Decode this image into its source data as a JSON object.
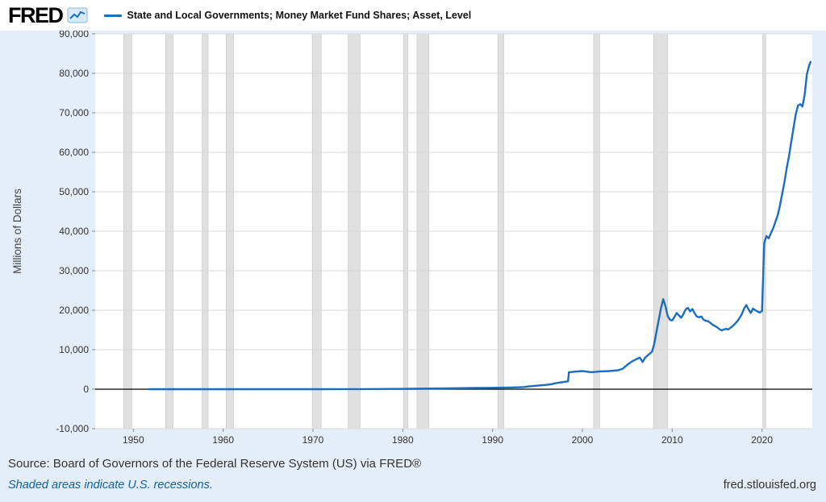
{
  "header": {
    "brand": "FRED",
    "legend": {
      "label": "State and Local Governments; Money Market Fund Shares; Asset, Level"
    }
  },
  "footer": {
    "source": "Source: Board of Governors of the Federal Reserve System (US) via FRED®",
    "recession_note": "Shaded areas indicate U.S. recessions.",
    "site": "fred.stlouisfed.org"
  },
  "chart_data": {
    "type": "line",
    "title": "State and Local Governments; Money Market Fund Shares; Asset, Level",
    "xlabel": "",
    "ylabel": "Millions of Dollars",
    "xlim": [
      1945.75,
      2025.6
    ],
    "ylim": [
      -10000,
      90000
    ],
    "yticks": [
      -10000,
      0,
      10000,
      20000,
      30000,
      40000,
      50000,
      60000,
      70000,
      80000,
      90000
    ],
    "xticks": [
      1950,
      1960,
      1970,
      1980,
      1990,
      2000,
      2010,
      2020
    ],
    "grid": true,
    "legend_position": "top",
    "line_color": "#1b6dc1",
    "recession_color": "#e0e0e0",
    "recessions": [
      [
        1948.92,
        1949.83
      ],
      [
        1953.58,
        1954.42
      ],
      [
        1957.67,
        1958.33
      ],
      [
        1960.33,
        1961.17
      ],
      [
        1969.92,
        1970.92
      ],
      [
        1973.92,
        1975.25
      ],
      [
        1980.08,
        1980.58
      ],
      [
        1981.58,
        1982.92
      ],
      [
        1990.58,
        1991.25
      ],
      [
        2001.25,
        2001.92
      ],
      [
        2007.92,
        2009.5
      ],
      [
        2020.08,
        2020.42
      ]
    ],
    "series": [
      {
        "name": "State and Local Governments; Money Market Fund Shares; Asset, Level",
        "units": "Millions of Dollars",
        "points": [
          [
            1951.75,
            5
          ],
          [
            1955,
            5
          ],
          [
            1960,
            5
          ],
          [
            1965,
            5
          ],
          [
            1970,
            10
          ],
          [
            1974,
            20
          ],
          [
            1975,
            30
          ],
          [
            1980,
            80
          ],
          [
            1985,
            200
          ],
          [
            1988,
            300
          ],
          [
            1990,
            350
          ],
          [
            1991,
            380
          ],
          [
            1992,
            420
          ],
          [
            1993,
            500
          ],
          [
            1993.5,
            550
          ],
          [
            1994,
            700
          ],
          [
            1994.5,
            800
          ],
          [
            1995,
            900
          ],
          [
            1995.5,
            1000
          ],
          [
            1996,
            1100
          ],
          [
            1996.5,
            1250
          ],
          [
            1997,
            1500
          ],
          [
            1997.5,
            1700
          ],
          [
            1998,
            1850
          ],
          [
            1998.4,
            2000
          ],
          [
            1998.5,
            4300
          ],
          [
            1999,
            4400
          ],
          [
            2000,
            4600
          ],
          [
            2001,
            4300
          ],
          [
            2002,
            4500
          ],
          [
            2003,
            4600
          ],
          [
            2004,
            4800
          ],
          [
            2004.5,
            5200
          ],
          [
            2005,
            6200
          ],
          [
            2005.5,
            7000
          ],
          [
            2006,
            7600
          ],
          [
            2006.4,
            8000
          ],
          [
            2006.7,
            6900
          ],
          [
            2007,
            8000
          ],
          [
            2007.5,
            9000
          ],
          [
            2007.75,
            9500
          ],
          [
            2008,
            11500
          ],
          [
            2008.25,
            14500
          ],
          [
            2008.5,
            17500
          ],
          [
            2008.75,
            20500
          ],
          [
            2009,
            22800
          ],
          [
            2009.25,
            21000
          ],
          [
            2009.5,
            18500
          ],
          [
            2009.75,
            17600
          ],
          [
            2010,
            17400
          ],
          [
            2010.25,
            18300
          ],
          [
            2010.5,
            19300
          ],
          [
            2010.75,
            18700
          ],
          [
            2011,
            18100
          ],
          [
            2011.25,
            19000
          ],
          [
            2011.5,
            20200
          ],
          [
            2011.75,
            20600
          ],
          [
            2012,
            19700
          ],
          [
            2012.25,
            20300
          ],
          [
            2012.5,
            19200
          ],
          [
            2012.75,
            18400
          ],
          [
            2013,
            18200
          ],
          [
            2013.25,
            18400
          ],
          [
            2013.5,
            17600
          ],
          [
            2013.75,
            17300
          ],
          [
            2014,
            17200
          ],
          [
            2014.25,
            16800
          ],
          [
            2014.5,
            16300
          ],
          [
            2014.75,
            16000
          ],
          [
            2015,
            15700
          ],
          [
            2015.25,
            15200
          ],
          [
            2015.5,
            14900
          ],
          [
            2015.75,
            15100
          ],
          [
            2016,
            15300
          ],
          [
            2016.25,
            15100
          ],
          [
            2016.5,
            15600
          ],
          [
            2016.75,
            16000
          ],
          [
            2017,
            16600
          ],
          [
            2017.25,
            17200
          ],
          [
            2017.5,
            18000
          ],
          [
            2017.75,
            19000
          ],
          [
            2018,
            20400
          ],
          [
            2018.25,
            21300
          ],
          [
            2018.5,
            20200
          ],
          [
            2018.75,
            19300
          ],
          [
            2019,
            20400
          ],
          [
            2019.25,
            20000
          ],
          [
            2019.5,
            19700
          ],
          [
            2019.75,
            19400
          ],
          [
            2020,
            19800
          ],
          [
            2020.25,
            37000
          ],
          [
            2020.5,
            38800
          ],
          [
            2020.75,
            38200
          ],
          [
            2021,
            39600
          ],
          [
            2021.25,
            40800
          ],
          [
            2021.5,
            42500
          ],
          [
            2021.75,
            44000
          ],
          [
            2022,
            46500
          ],
          [
            2022.25,
            49500
          ],
          [
            2022.5,
            52500
          ],
          [
            2022.75,
            56000
          ],
          [
            2023,
            59000
          ],
          [
            2023.25,
            62500
          ],
          [
            2023.5,
            66000
          ],
          [
            2023.75,
            69500
          ],
          [
            2024,
            71800
          ],
          [
            2024.25,
            72200
          ],
          [
            2024.5,
            71600
          ],
          [
            2024.75,
            74500
          ],
          [
            2025,
            79800
          ],
          [
            2025.25,
            82000
          ],
          [
            2025.4,
            82900
          ]
        ]
      }
    ]
  }
}
